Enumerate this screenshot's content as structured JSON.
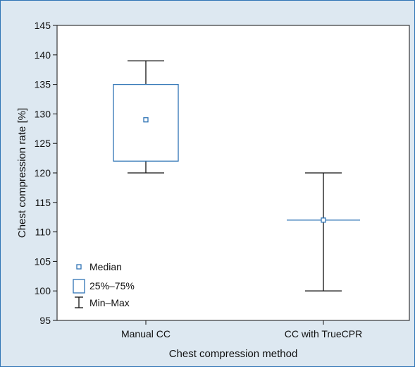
{
  "chart_data": {
    "type": "box",
    "xlabel": "Chest compression method",
    "ylabel": "Chest compression rate [%]",
    "ylim": [
      95,
      145
    ],
    "yticks": [
      95,
      100,
      105,
      110,
      115,
      120,
      125,
      130,
      135,
      140,
      145
    ],
    "categories": [
      "Manual CC",
      "CC with TrueCPR"
    ],
    "boxes": [
      {
        "category": "Manual CC",
        "min": 120,
        "q1": 122,
        "median": 129,
        "q3": 135,
        "max": 139
      },
      {
        "category": "CC with TrueCPR",
        "min": 100,
        "q1": 112,
        "median": 112,
        "q3": 112,
        "max": 120
      }
    ],
    "legend": {
      "position": "bottom-left",
      "items": [
        {
          "symbol": "median",
          "label": "Median"
        },
        {
          "symbol": "box",
          "label": "25%–75%"
        },
        {
          "symbol": "whisker",
          "label": "Min–Max"
        }
      ]
    },
    "grid": false,
    "colors": {
      "box": "#2f74b5",
      "whisker": "#111111",
      "background": "#dde8f1",
      "plot_bg": "#ffffff"
    }
  }
}
